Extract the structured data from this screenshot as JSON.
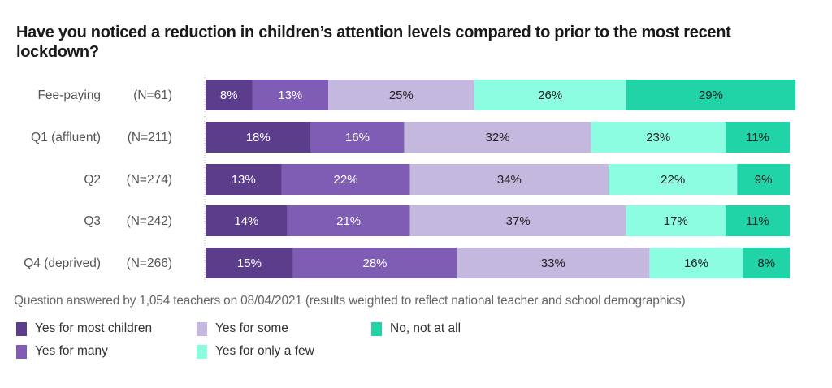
{
  "chart_data": {
    "type": "bar",
    "orientation": "horizontal",
    "stacked": true,
    "title": "Have you noticed a reduction in children’s attention levels compared to prior to the most recent lockdown?",
    "xlabel": "",
    "ylabel": "",
    "xlim": [
      0,
      100
    ],
    "grid": false,
    "legend_position": "bottom-left",
    "categories": [
      "Fee-paying",
      "Q1 (affluent)",
      "Q2",
      "Q3",
      "Q4 (deprived)"
    ],
    "sample_sizes": [
      "(N=61)",
      "(N=211)",
      "(N=274)",
      "(N=242)",
      "(N=266)"
    ],
    "series": [
      {
        "name": "Yes for most children",
        "color": "#5b3d8c",
        "text_color": "#ffffff",
        "values": [
          8,
          18,
          13,
          14,
          15
        ]
      },
      {
        "name": "Yes for many",
        "color": "#7f5db4",
        "text_color": "#ffffff",
        "values": [
          13,
          16,
          22,
          21,
          28
        ]
      },
      {
        "name": "Yes for some",
        "color": "#c5b8de",
        "text_color": "#222222",
        "values": [
          25,
          32,
          34,
          37,
          33
        ]
      },
      {
        "name": "Yes for only a few",
        "color": "#8dfde2",
        "text_color": "#222222",
        "values": [
          26,
          23,
          22,
          17,
          16
        ]
      },
      {
        "name": "No, not at all",
        "color": "#20d4a8",
        "text_color": "#222222",
        "values": [
          29,
          11,
          9,
          11,
          8
        ]
      }
    ],
    "value_suffix": "%",
    "note": "Question answered by 1,054 teachers on 08/04/2021 (results weighted to reflect national teacher and school demographics)"
  }
}
